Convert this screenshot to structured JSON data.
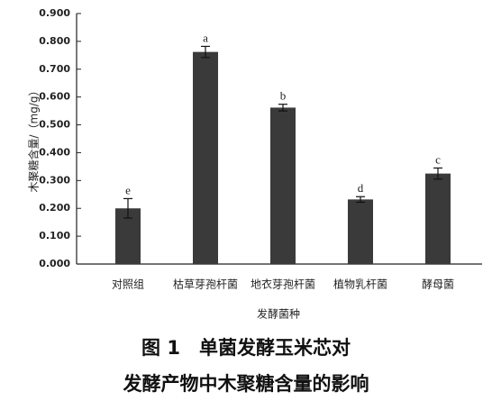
{
  "chart_data": {
    "type": "bar",
    "title_lines": [
      "图 1　单菌发酵玉米芯对",
      "发酵产物中木聚糖含量的影响"
    ],
    "x_label": "发酵菌种",
    "y_label": "木聚糖含量/（mg/g）",
    "categories": [
      "对照组",
      "枯草芽孢杆菌",
      "地衣芽孢杆菌",
      "植物乳杆菌",
      "酵母菌"
    ],
    "values": [
      0.2,
      0.762,
      0.562,
      0.232,
      0.325
    ],
    "errors": [
      0.035,
      0.02,
      0.012,
      0.01,
      0.02
    ],
    "significance_labels": [
      "e",
      "a",
      "b",
      "d",
      "c"
    ],
    "color": "#3a3a3a",
    "ylim": [
      0,
      0.9
    ],
    "yticks": [
      {
        "value": 0,
        "label": "0.000"
      },
      {
        "value": 0.1,
        "label": "0.100"
      },
      {
        "value": 0.2,
        "label": "0.200"
      },
      {
        "value": 0.3,
        "label": "0.300"
      },
      {
        "value": 0.4,
        "label": "0.400"
      },
      {
        "value": 0.5,
        "label": "0.500"
      },
      {
        "value": 0.6,
        "label": "0.600"
      },
      {
        "value": 0.7,
        "label": "0.700"
      },
      {
        "value": 0.8,
        "label": "0.800"
      },
      {
        "value": 0.9,
        "label": "0.900"
      }
    ]
  }
}
